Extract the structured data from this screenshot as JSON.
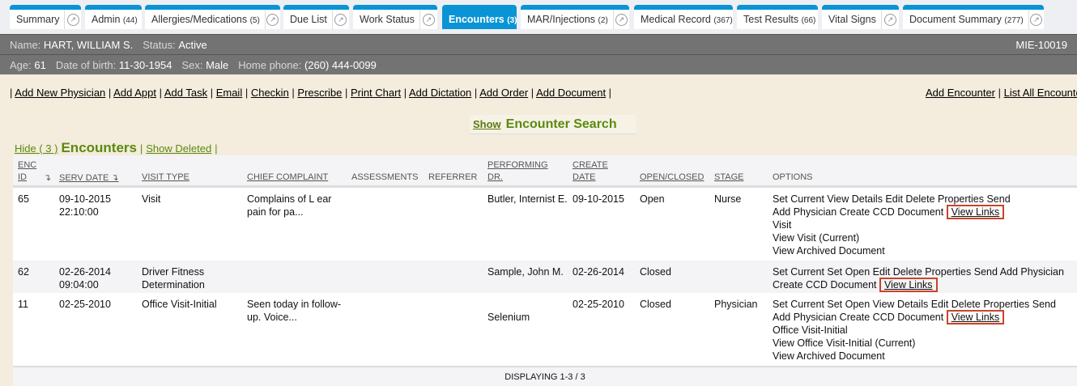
{
  "tabs": [
    {
      "label": "Summary",
      "count": "",
      "ext": true
    },
    {
      "label": "Admin",
      "count": "(44)",
      "ext": false
    },
    {
      "label": "Allergies/Medications",
      "count": "(5)",
      "ext": true
    },
    {
      "label": "Due List",
      "count": "",
      "ext": true
    },
    {
      "label": "Work Status",
      "count": "",
      "ext": true
    },
    {
      "label": "Encounters",
      "count": "(3)",
      "ext": false,
      "active": true
    },
    {
      "label": "MAR/Injections",
      "count": "(2)",
      "ext": true
    },
    {
      "label": "Medical Record",
      "count": "(367)",
      "ext": false
    },
    {
      "label": "Test Results",
      "count": "(66)",
      "ext": false
    },
    {
      "label": "Vital Signs",
      "count": "",
      "ext": true
    },
    {
      "label": "Document Summary",
      "count": "(277)",
      "ext": true
    }
  ],
  "patient": {
    "name_label": "Name:",
    "name": "HART, WILLIAM S.",
    "status_label": "Status:",
    "status": "Active",
    "mrn": "MIE-10019",
    "age_label": "Age:",
    "age": "61",
    "dob_label": "Date of birth:",
    "dob": "11-30-1954",
    "sex_label": "Sex:",
    "sex": "Male",
    "phone_label": "Home phone:",
    "phone": "(260) 444-0099"
  },
  "actions": [
    "Add New Physician",
    "Add Appt",
    "Add Task",
    "Email",
    "Checkin",
    "Prescribe",
    "Print Chart",
    "Add Dictation",
    "Add Order",
    "Add Document"
  ],
  "right_actions": [
    "Add Encounter",
    "List All Encounters"
  ],
  "search": {
    "show": "Show",
    "title": "Encounter Search"
  },
  "encounters": {
    "hide": "Hide ( 3 )",
    "title": "Encounters",
    "show_deleted": "Show Deleted"
  },
  "columns": {
    "enc": "ENC",
    "id": "ID",
    "serv_date": "SERV DATE",
    "visit_type": "VISIT TYPE",
    "chief": "CHIEF COMPLAINT",
    "assess": "ASSESSMENTS",
    "referrer": "REFERRER",
    "perf1": "PERFORMING",
    "perf2": "DR.",
    "create1": "CREATE",
    "create2": "DATE",
    "open": "OPEN/CLOSED",
    "stage": "STAGE",
    "options": "OPTIONS"
  },
  "rows": [
    {
      "id": "65",
      "date": "09-10-2015",
      "time": "22:10:00",
      "type": "Visit",
      "chief": "Complains of L ear pain for pa...",
      "dr": "Butler, Internist E.",
      "create": "09-10-2015",
      "open": "Open",
      "stage": "Nurse",
      "opt1": "Set Current View Details Edit Delete Properties Send",
      "opt2": "Add Physician Create CCD Document",
      "view_links": "View Links",
      "opt3": "Visit",
      "opt4": "View Visit (Current)",
      "opt5": "View Archived Document"
    },
    {
      "id": "62",
      "date": "02-26-2014",
      "time": "09:04:00",
      "type": "Driver Fitness Determination",
      "chief": "",
      "dr": "Sample, John M.",
      "create": "02-26-2014",
      "open": "Closed",
      "stage": "",
      "opt1": "Set Current Set Open Edit Delete Properties Send Add Physician",
      "opt2": "Create CCD Document",
      "view_links": "View Links"
    },
    {
      "id": "11",
      "date": "02-25-2010",
      "time": "",
      "type": "Office Visit-Initial",
      "chief": "Seen today in follow-up. Voice...",
      "dr": "Selenium",
      "create": "02-25-2010",
      "open": "Closed",
      "stage": "Physician",
      "opt1": "Set Current Set Open View Details Edit Delete Properties Send",
      "opt2": "Add Physician Create CCD Document",
      "view_links": "View Links",
      "opt3": "Office Visit-Initial",
      "opt4": "View Office Visit-Initial (Current)",
      "opt5": "View Archived Document"
    }
  ],
  "footer": "DISPLAYING 1-3 / 3"
}
